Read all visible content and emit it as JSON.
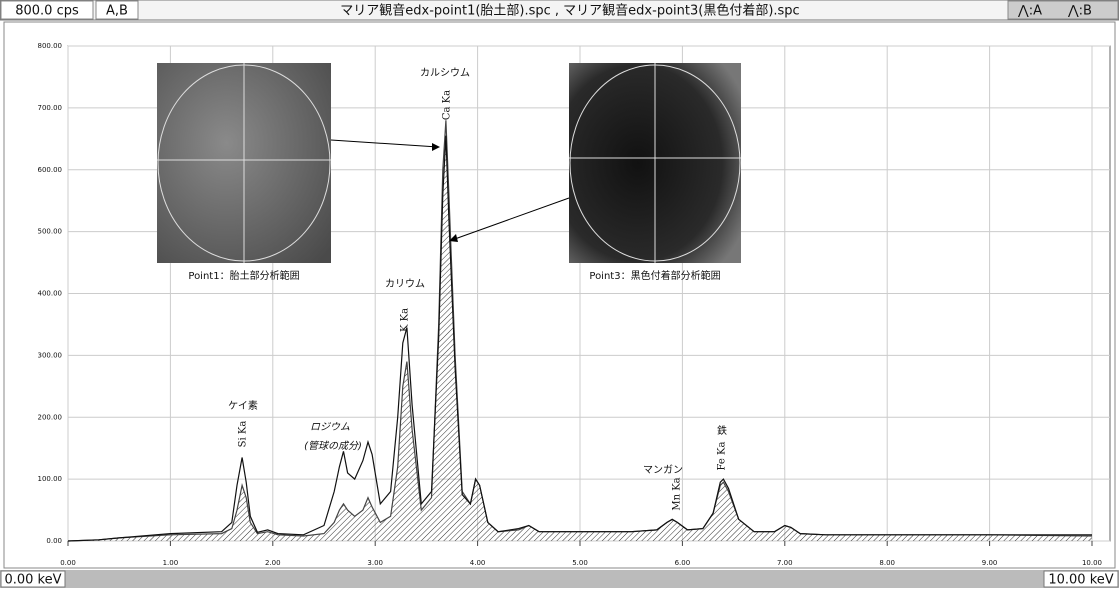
{
  "y_unit_label": "800.0 cps",
  "selection": "A,B",
  "x_start_label": "0.00 keV",
  "x_end_label": "10.00 keV",
  "chart_data": {
    "type": "line",
    "title": "マリア観音edx-point1(胎土部).spc , マリア観音edx-point3(黒色付着部).spc",
    "x": [
      0,
      0.3,
      0.5,
      1.0,
      1.5,
      1.6,
      1.65,
      1.7,
      1.74,
      1.78,
      1.85,
      1.95,
      2.05,
      2.3,
      2.5,
      2.6,
      2.65,
      2.69,
      2.73,
      2.8,
      2.88,
      2.93,
      2.97,
      3.05,
      3.15,
      3.22,
      3.27,
      3.31,
      3.36,
      3.45,
      3.55,
      3.62,
      3.66,
      3.69,
      3.72,
      3.78,
      3.85,
      3.93,
      3.98,
      4.02,
      4.1,
      4.2,
      4.4,
      4.5,
      4.6,
      5.0,
      5.5,
      5.75,
      5.85,
      5.9,
      5.95,
      6.05,
      6.2,
      6.3,
      6.37,
      6.4,
      6.45,
      6.55,
      6.7,
      6.9,
      7.0,
      7.06,
      7.15,
      7.4,
      8.0,
      9.0,
      10.0
    ],
    "series": [
      {
        "name": "⋀:A",
        "color": "#444444",
        "hatched": true,
        "values": [
          0,
          2,
          5,
          10,
          12,
          20,
          50,
          90,
          70,
          30,
          12,
          15,
          10,
          8,
          12,
          30,
          50,
          60,
          50,
          40,
          50,
          70,
          55,
          30,
          40,
          120,
          250,
          290,
          180,
          50,
          70,
          350,
          600,
          680,
          560,
          300,
          80,
          60,
          100,
          90,
          30,
          15,
          18,
          25,
          15,
          15,
          15,
          18,
          30,
          35,
          30,
          18,
          20,
          45,
          90,
          95,
          80,
          35,
          15,
          15,
          25,
          22,
          12,
          10,
          10,
          10,
          8
        ]
      },
      {
        "name": "⋀:B",
        "color": "#111111",
        "hatched": false,
        "values": [
          0,
          2,
          5,
          12,
          15,
          30,
          90,
          135,
          95,
          40,
          14,
          18,
          12,
          10,
          25,
          80,
          120,
          145,
          110,
          100,
          130,
          160,
          140,
          60,
          80,
          200,
          320,
          345,
          220,
          60,
          80,
          330,
          560,
          655,
          520,
          280,
          75,
          60,
          100,
          90,
          30,
          15,
          20,
          25,
          15,
          15,
          15,
          18,
          30,
          35,
          30,
          18,
          20,
          45,
          95,
          100,
          85,
          35,
          15,
          15,
          25,
          22,
          12,
          10,
          10,
          10,
          10
        ]
      }
    ],
    "xlim": [
      0,
      10
    ],
    "ylim": [
      0,
      800
    ],
    "xticks": [
      {
        "value": 0,
        "label": "0.00"
      },
      {
        "value": 1,
        "label": "1.00"
      },
      {
        "value": 2,
        "label": "2.00"
      },
      {
        "value": 3,
        "label": "3.00"
      },
      {
        "value": 4,
        "label": "4.00"
      },
      {
        "value": 5,
        "label": "5.00"
      },
      {
        "value": 6,
        "label": "6.00"
      },
      {
        "value": 7,
        "label": "7.00"
      },
      {
        "value": 8,
        "label": "8.00"
      },
      {
        "value": 9,
        "label": "9.00"
      },
      {
        "value": 10,
        "label": "10.00"
      }
    ],
    "yticks": [
      {
        "value": 0,
        "label": "0.00"
      },
      {
        "value": 100,
        "label": "100.00"
      },
      {
        "value": 200,
        "label": "200.00"
      },
      {
        "value": 300,
        "label": "300.00"
      },
      {
        "value": 400,
        "label": "400.00"
      },
      {
        "value": 500,
        "label": "500.00"
      },
      {
        "value": 600,
        "label": "600.00"
      },
      {
        "value": 700,
        "label": "700.00"
      },
      {
        "value": 800,
        "label": "800.00"
      }
    ],
    "grid": true,
    "annotations": [
      "カルシウム",
      "Ca Ka",
      "カリウム",
      "K Ka",
      "ケイ素",
      "Si Ka",
      "ロジウム",
      "(管球の成分)",
      "マンガン",
      "Mn Ka",
      "鉄",
      "Fe Ka"
    ],
    "inset_captions": [
      "Point1：胎土部分析範囲",
      "Point3：黒色付着部分析範囲"
    ]
  }
}
